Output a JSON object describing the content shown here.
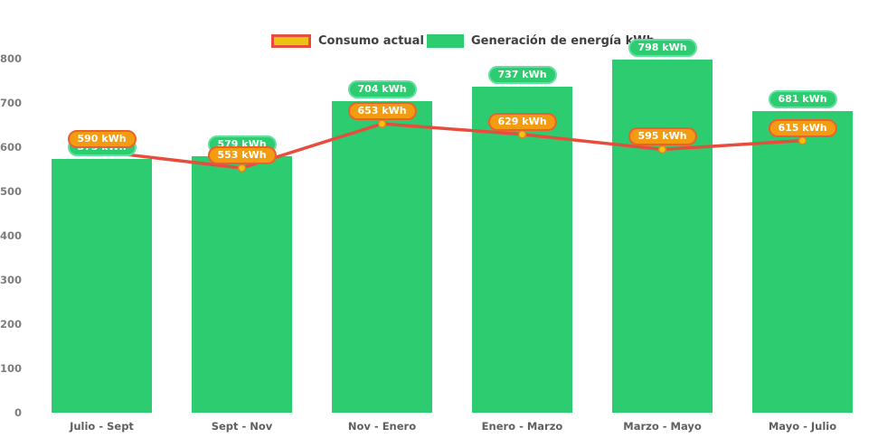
{
  "chart_data": {
    "type": "bar",
    "subtype": "bar-with-line-overlay",
    "categories": [
      "Julio - Sept",
      "Sept - Nov",
      "Nov - Enero",
      "Enero - Marzo",
      "Marzo - Mayo",
      "Mayo - Julio"
    ],
    "series": [
      {
        "name": "Consumo actual kWh",
        "type": "line",
        "values": [
          590,
          553,
          653,
          629,
          595,
          615
        ],
        "line_color": "#e74c3c",
        "marker_fill": "#f1c40f",
        "marker_ring": "#e67e22",
        "badge_bg": "#f39c12",
        "badge_border": "#e8622d"
      },
      {
        "name": "Generación de energía kWh",
        "type": "bar",
        "values": [
          573,
          579,
          704,
          737,
          798,
          681
        ],
        "bar_color": "#2ecc71",
        "badge_bg": "#2ecc71",
        "badge_border": "#63dfa0"
      }
    ],
    "unit": "kWh",
    "y_ticks": [
      800,
      700,
      600,
      500,
      400,
      300,
      200,
      100,
      0
    ],
    "ylim": [
      0,
      800
    ],
    "grid": false,
    "legend_position": "top-center",
    "axis_text_color": "#7c7c7c",
    "title": "",
    "xlabel": "",
    "ylabel": ""
  }
}
